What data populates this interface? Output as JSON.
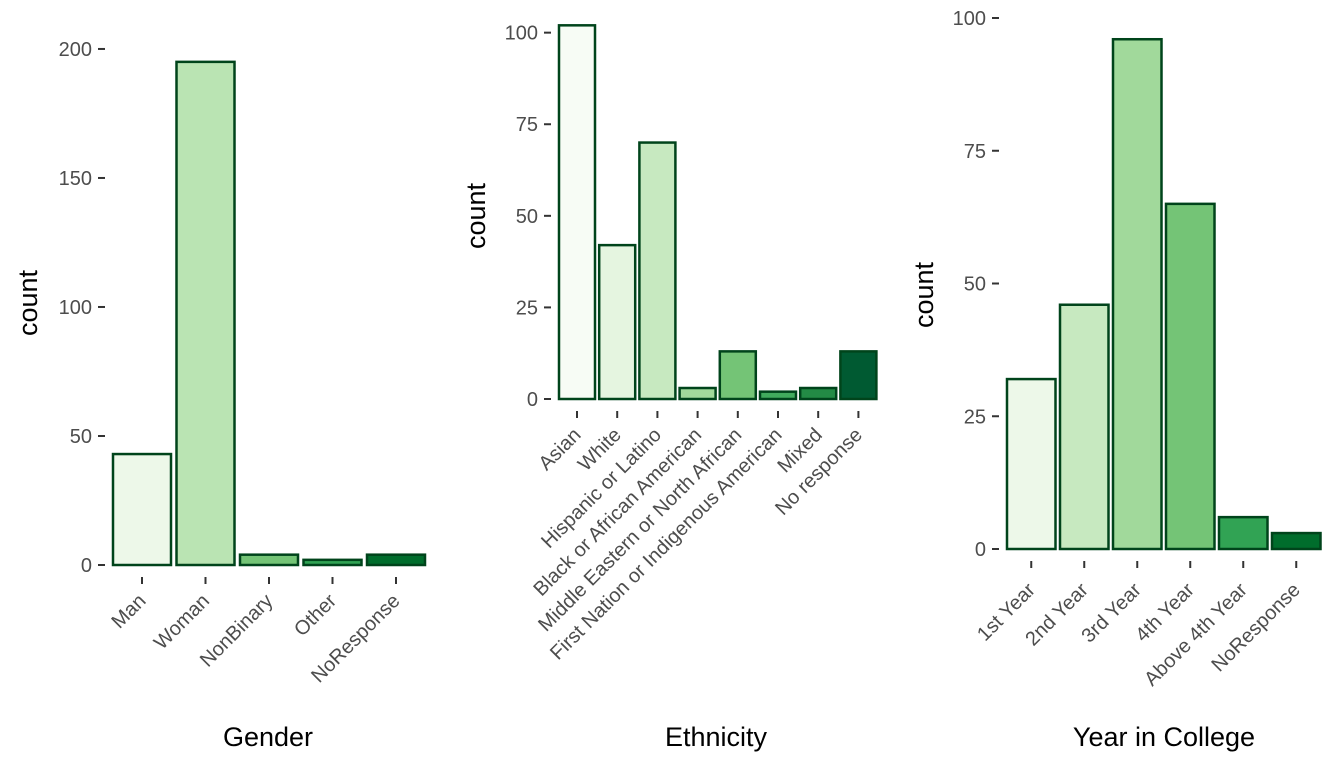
{
  "chart_data": [
    {
      "type": "bar",
      "xlabel": "Gender",
      "ylabel": "count",
      "ylim": [
        0,
        212
      ],
      "yticks": [
        0,
        50,
        100,
        150,
        200
      ],
      "grid": false,
      "bar_stroke": "#00441b",
      "categories": [
        "Man",
        "Woman",
        "NonBinary",
        "Other",
        "NoResponse"
      ],
      "values": [
        43,
        195,
        4,
        2,
        4
      ],
      "colors": [
        "#edf8e9",
        "#bae4b3",
        "#74c476",
        "#31a354",
        "#006d2c"
      ]
    },
    {
      "type": "bar",
      "xlabel": "Ethnicity",
      "ylabel": "count",
      "ylim": [
        0,
        104
      ],
      "yticks": [
        0,
        25,
        50,
        75,
        100
      ],
      "grid": false,
      "bar_stroke": "#00441b",
      "categories": [
        "Asian",
        "White",
        "Hispanic or Latino",
        "Black or African American",
        "Middle Eastern or North African",
        "First Nation or Indigenous American",
        "Mixed",
        "No response"
      ],
      "values": [
        102,
        42,
        70,
        3,
        13,
        2,
        3,
        13
      ],
      "colors": [
        "#f7fcf5",
        "#e5f5e0",
        "#c7e9c0",
        "#a1d99b",
        "#74c476",
        "#41ab5d",
        "#238b45",
        "#005a32"
      ]
    },
    {
      "type": "bar",
      "xlabel": "Year in College",
      "ylabel": "count",
      "ylim": [
        0,
        100
      ],
      "yticks": [
        0,
        25,
        50,
        75,
        100
      ],
      "grid": false,
      "bar_stroke": "#00441b",
      "categories": [
        "1st Year",
        "2nd Year",
        "3rd Year",
        "4th Year",
        "Above 4th Year",
        "NoResponse"
      ],
      "values": [
        32,
        46,
        96,
        65,
        6,
        3
      ],
      "colors": [
        "#edf8e9",
        "#c7e9c0",
        "#a1d99b",
        "#74c476",
        "#31a354",
        "#006d2c"
      ]
    }
  ]
}
